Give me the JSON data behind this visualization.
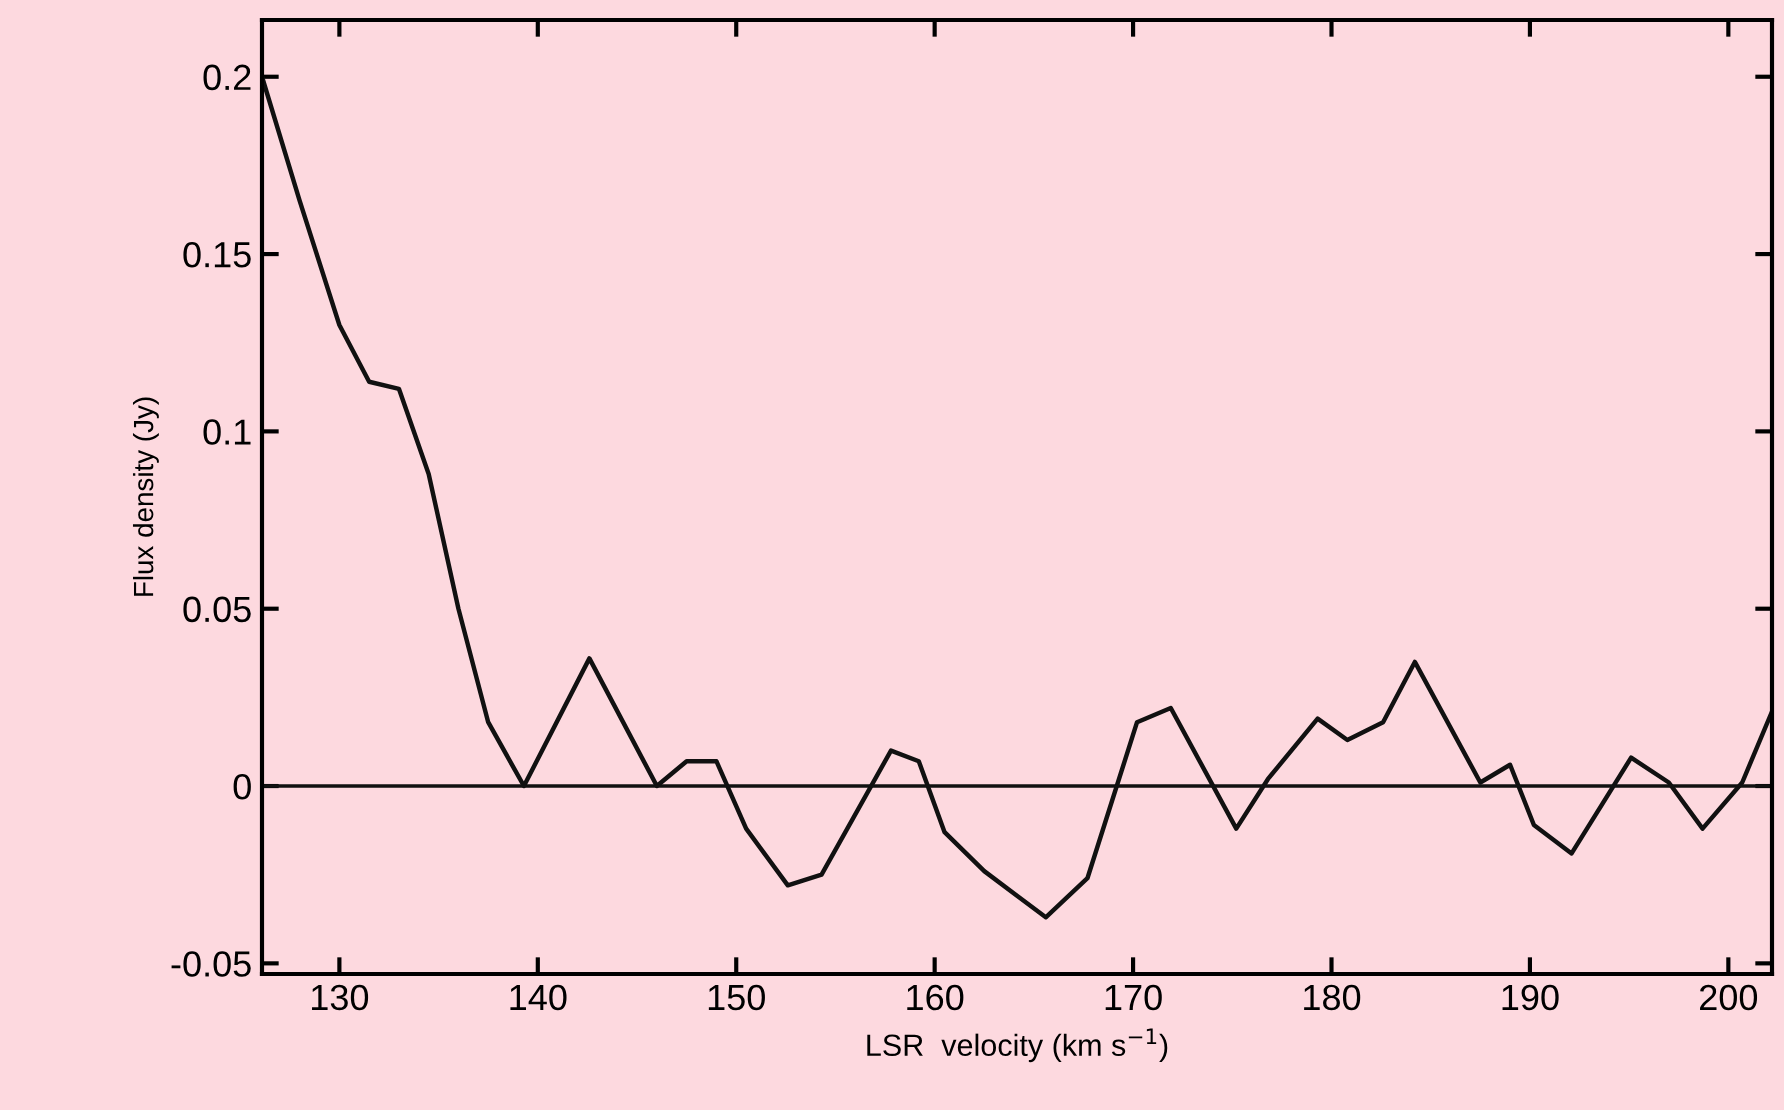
{
  "chart_data": {
    "type": "line",
    "xlabel": "LSR  velocity (km s$^{−1}$)",
    "ylabel": "Flux density (Jy)",
    "x": [
      126.1,
      128,
      130,
      131.5,
      133,
      134.5,
      136,
      137.5,
      139.3,
      142.6,
      146,
      147.5,
      149,
      150.5,
      152.6,
      154.3,
      157.8,
      159.2,
      160.5,
      162.5,
      165.6,
      167.7,
      170.2,
      171.9,
      175.2,
      176.8,
      179.3,
      180.8,
      182.6,
      184.2,
      187.5,
      189,
      190.2,
      192.1,
      195.1,
      197,
      198.7,
      200.7,
      202.2
    ],
    "series": [
      {
        "color": "#111111",
        "values": [
          0.2,
          0.165,
          0.13,
          0.114,
          0.112,
          0.088,
          0.05,
          0.018,
          0.0,
          0.036,
          0.0,
          0.007,
          0.007,
          -0.012,
          -0.028,
          -0.025,
          0.01,
          0.007,
          -0.013,
          -0.024,
          -0.037,
          -0.026,
          0.018,
          0.022,
          -0.012,
          0.002,
          0.019,
          0.013,
          0.018,
          0.035,
          0.001,
          0.006,
          -0.011,
          -0.019,
          0.008,
          0.001,
          -0.012,
          0.001,
          0.021
        ]
      }
    ],
    "xlim": [
      126.1,
      202.2
    ],
    "ylim": [
      -0.053,
      0.216
    ],
    "xticks": [
      130,
      140,
      150,
      160,
      170,
      180,
      190,
      200
    ],
    "yticks": [
      -0.05,
      0,
      0.05,
      0.1,
      0.15,
      0.2
    ],
    "ref_lines": [
      {
        "axis": "y",
        "value": 0,
        "color": "#111111"
      }
    ],
    "grid": false,
    "legend": false,
    "marker": "none",
    "line_style": "solid"
  }
}
